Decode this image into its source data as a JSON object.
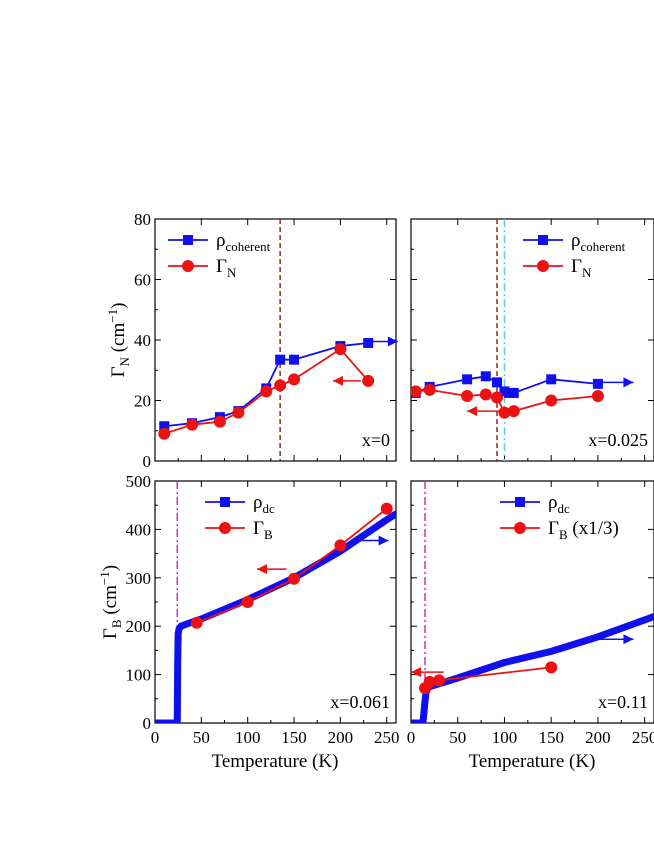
{
  "colors": {
    "blue": "#1010ee",
    "red": "#ee1111",
    "darkred": "#8b1a1a",
    "cyan": "#5bc8e6",
    "magenta": "#cc22cc"
  },
  "axes": {
    "x_label": "Temperature (K)",
    "top_y_label": {
      "main": "Γ",
      "sub": "N",
      "unit": " (cm",
      "sup": "−1",
      "close": ")"
    },
    "bottom_y_label": {
      "main": "Γ",
      "sub": "B",
      "unit": " (cm",
      "sup": "−1",
      "close": ")"
    }
  },
  "chart_data": [
    {
      "type": "line",
      "annotation": "x=0",
      "xlim": [
        0,
        260
      ],
      "ylim": [
        0,
        80
      ],
      "x_ticks": [
        "0",
        "50",
        "100",
        "150",
        "200",
        "250"
      ],
      "y_ticks": [
        "0",
        "20",
        "40",
        "60",
        "80"
      ],
      "legend": [
        {
          "main": "ρ",
          "sub": "coherent",
          "color": "blue",
          "marker": "square"
        },
        {
          "main": "Γ",
          "sub": "N",
          "color": "red",
          "marker": "circle"
        }
      ],
      "vlines": [
        {
          "x": 135,
          "color": "darkred",
          "style": "dash"
        }
      ],
      "series": [
        {
          "name": "ρcoherent",
          "color": "blue",
          "marker": "square",
          "x": [
            10,
            40,
            70,
            90,
            120,
            135,
            150,
            200,
            230
          ],
          "y": [
            11.5,
            12.5,
            14.5,
            16.5,
            24,
            33.5,
            33.5,
            38,
            39
          ]
        },
        {
          "name": "ΓN",
          "color": "red",
          "marker": "circle",
          "x": [
            10,
            40,
            70,
            90,
            120,
            135,
            150,
            200,
            230
          ],
          "y": [
            9,
            12,
            13,
            16,
            23,
            25,
            27,
            37,
            26.5
          ]
        }
      ],
      "arrows": [
        {
          "from": [
            230,
            39.5
          ],
          "to": [
            262,
            39.5
          ],
          "color": "blue"
        },
        {
          "from": [
            222,
            26.5
          ],
          "to": [
            192,
            26.5
          ],
          "color": "red"
        }
      ]
    },
    {
      "type": "line",
      "annotation": "x=0.025",
      "xlim": [
        0,
        260
      ],
      "ylim": [
        0,
        80
      ],
      "x_ticks": [
        "0",
        "50",
        "100",
        "150",
        "200",
        "250"
      ],
      "y_ticks": [],
      "legend": [
        {
          "main": "ρ",
          "sub": "coherent",
          "color": "blue",
          "marker": "square"
        },
        {
          "main": "Γ",
          "sub": "N",
          "color": "red",
          "marker": "circle"
        }
      ],
      "vlines": [
        {
          "x": 92,
          "color": "darkred",
          "style": "dash"
        },
        {
          "x": 100,
          "color": "cyan",
          "style": "dashdot"
        }
      ],
      "series": [
        {
          "name": "ρcoherent",
          "color": "blue",
          "marker": "square",
          "x": [
            5,
            20,
            60,
            80,
            92,
            100,
            105,
            110,
            150,
            200
          ],
          "y": [
            22.5,
            24.5,
            27,
            28,
            26,
            23,
            22.5,
            22.5,
            27,
            25.5
          ]
        },
        {
          "name": "ΓN",
          "color": "red",
          "marker": "circle",
          "x": [
            5,
            20,
            60,
            80,
            92,
            100,
            110,
            150,
            200
          ],
          "y": [
            23,
            23.5,
            21.5,
            22,
            21,
            16,
            16.5,
            20,
            21.5
          ]
        }
      ],
      "arrows": [
        {
          "from": [
            200,
            26
          ],
          "to": [
            238,
            26
          ],
          "color": "blue"
        },
        {
          "from": [
            100,
            16.5
          ],
          "to": [
            60,
            16.5
          ],
          "color": "red"
        }
      ]
    },
    {
      "type": "line",
      "annotation": "x=0.061",
      "xlim": [
        0,
        260
      ],
      "ylim": [
        0,
        500
      ],
      "x_ticks": [
        "0",
        "50",
        "100",
        "150",
        "200",
        "250"
      ],
      "y_ticks": [
        "0",
        "100",
        "200",
        "300",
        "400",
        "500"
      ],
      "legend": [
        {
          "main": "ρ",
          "sub": "dc",
          "color": "blue",
          "marker": "square"
        },
        {
          "main": "Γ",
          "sub": "B",
          "color": "red",
          "marker": "circle"
        }
      ],
      "vlines": [
        {
          "x": 24,
          "color": "magenta",
          "style": "dashdot"
        }
      ],
      "series": [
        {
          "name": "ρdc",
          "color": "blue",
          "marker": "square",
          "x": [
            0,
            10,
            20,
            22,
            24,
            24.5,
            25,
            26,
            28,
            35,
            50,
            100,
            150,
            200,
            250,
            260
          ],
          "y": [
            0,
            0,
            0,
            0,
            0,
            130,
            185,
            195,
            200,
            205,
            215,
            255,
            300,
            355,
            420,
            432
          ]
        },
        {
          "name": "ΓB",
          "color": "red",
          "marker": "circle",
          "x": [
            45,
            100,
            150,
            200,
            250
          ],
          "y": [
            207,
            250,
            298,
            367,
            443
          ]
        }
      ],
      "arrows": [
        {
          "from": [
            215,
            377
          ],
          "to": [
            252,
            377
          ],
          "color": "blue"
        },
        {
          "from": [
            142,
            318
          ],
          "to": [
            110,
            318
          ],
          "color": "red"
        }
      ]
    },
    {
      "type": "line",
      "annotation": "x=0.11",
      "xlim": [
        0,
        260
      ],
      "ylim": [
        0,
        500
      ],
      "x_ticks": [
        "0",
        "50",
        "100",
        "150",
        "200",
        "250"
      ],
      "y_ticks": [],
      "legend": [
        {
          "main": "ρ",
          "sub": "dc",
          "color": "blue",
          "marker": "square"
        },
        {
          "main": "Γ",
          "sub": "B",
          "extra": " (x1/3)",
          "color": "red",
          "marker": "circle"
        }
      ],
      "vlines": [
        {
          "x": 15,
          "color": "magenta",
          "style": "dashdot"
        }
      ],
      "series": [
        {
          "name": "ρdc",
          "color": "blue",
          "marker": "square",
          "x": [
            0,
            5,
            10,
            12,
            13,
            14,
            15,
            16,
            18,
            20,
            50,
            100,
            150,
            200,
            260
          ],
          "y": [
            0,
            0,
            0,
            0,
            5,
            25,
            45,
            62,
            72,
            75,
            93,
            125,
            148,
            178,
            220
          ]
        },
        {
          "name": "ΓB (x1/3)",
          "color": "red",
          "marker": "circle",
          "x": [
            15,
            20,
            30,
            150
          ],
          "y": [
            72,
            85,
            88,
            115
          ]
        }
      ],
      "arrows": [
        {
          "from": [
            200,
            173
          ],
          "to": [
            238,
            173
          ],
          "color": "blue"
        },
        {
          "from": [
            35,
            105
          ],
          "to": [
            0,
            105
          ],
          "color": "red"
        }
      ]
    }
  ]
}
